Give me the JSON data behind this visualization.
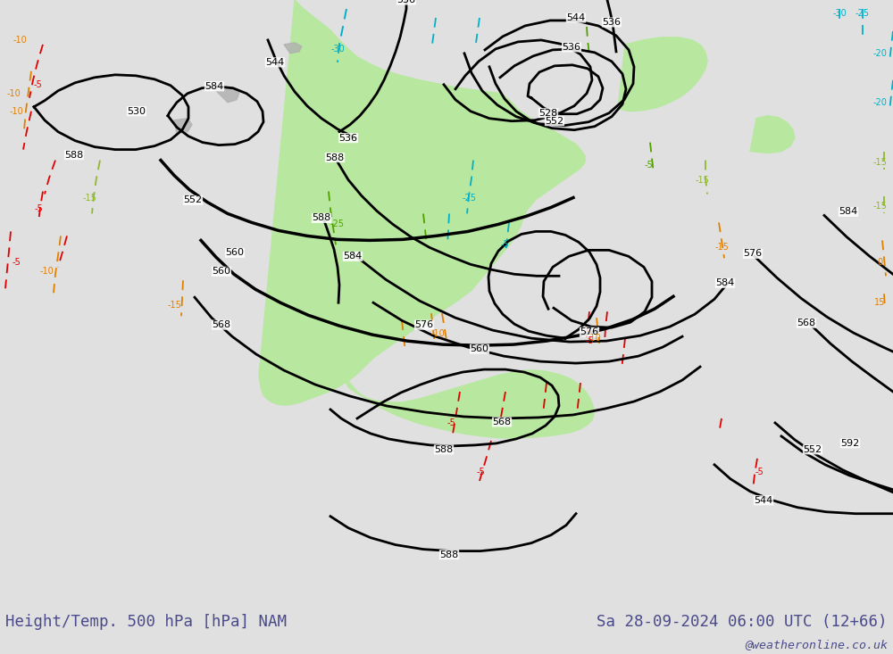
{
  "title_left": "Height/Temp. 500 hPa [hPa] NAM",
  "title_right": "Sa 28-09-2024 06:00 UTC (12+66)",
  "credit": "@weatheronline.co.uk",
  "title_color": "#4a4a8a",
  "fig_width": 10.0,
  "fig_height": 7.33,
  "ocean_color": "#d2d2d2",
  "land_green_color": "#b8e8a0",
  "land_gray_color": "#b0b0b0",
  "contour_color": "#000000",
  "bottom_bg": "#e0e0e0",
  "cyan_color": "#00b0c8",
  "green_color": "#50a000",
  "orange_color": "#e08000",
  "red_color": "#e00000",
  "yellow_green_color": "#90b830"
}
